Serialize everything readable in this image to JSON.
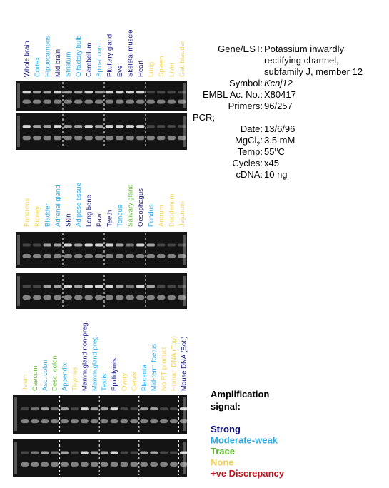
{
  "sections": [
    {
      "lanes": [
        {
          "label": "Whole brain",
          "color": "#10107a"
        },
        {
          "label": "Cortex",
          "color": "#2aa8e0"
        },
        {
          "label": "Hippocampus",
          "color": "#2aa8e0"
        },
        {
          "label": "Mid brain",
          "color": "#10107a"
        },
        {
          "label": "Striatum",
          "color": "#2aa8e0"
        },
        {
          "label": "Olfactory bulb",
          "color": "#2aa8e0"
        },
        {
          "label": "Cerebellum",
          "color": "#10107a"
        },
        {
          "label": "Spinal cord",
          "color": "#2aa8e0"
        },
        {
          "label": "Pituitary gland",
          "color": "#10107a"
        },
        {
          "label": "Eye",
          "color": "#10107a"
        },
        {
          "label": "Skeletal muscle",
          "color": "#10107a"
        },
        {
          "label": "Heart",
          "color": "#10107a"
        },
        {
          "label": "Lung",
          "color": "#f2d35a"
        },
        {
          "label": "Spleen",
          "color": "#f2d35a"
        },
        {
          "label": "Liver",
          "color": "#f2d35a"
        },
        {
          "label": "Gall bladder",
          "color": "#f2d35a"
        }
      ]
    },
    {
      "lanes": [
        {
          "label": "Pancreas",
          "color": "#f2d35a"
        },
        {
          "label": "Kidney",
          "color": "#f2d35a"
        },
        {
          "label": "Bladder",
          "color": "#2aa8e0"
        },
        {
          "label": "Adrenal gland",
          "color": "#2aa8e0"
        },
        {
          "label": "Skin",
          "color": "#10107a"
        },
        {
          "label": "Adipose tissue",
          "color": "#2aa8e0"
        },
        {
          "label": "Long bone",
          "color": "#10107a"
        },
        {
          "label": "Paw",
          "color": "#10107a"
        },
        {
          "label": "Teeth",
          "color": "#10107a"
        },
        {
          "label": "Tongue",
          "color": "#2aa8e0"
        },
        {
          "label": "Salivary gland",
          "color": "#5cb82a"
        },
        {
          "label": "Oesophagus",
          "color": "#10107a"
        },
        {
          "label": "Fundus",
          "color": "#2aa8e0"
        },
        {
          "label": "Antrum",
          "color": "#f2d35a"
        },
        {
          "label": "Duodenum",
          "color": "#f2d35a"
        },
        {
          "label": "Jejunum",
          "color": "#f2d35a"
        }
      ]
    },
    {
      "lanes": [
        {
          "label": "Ileum",
          "color": "#f2d35a"
        },
        {
          "label": "Caecum",
          "color": "#5cb82a"
        },
        {
          "label": "Asc. colon",
          "color": "#2aa8e0"
        },
        {
          "label": "Desc. colon",
          "color": "#5cb82a"
        },
        {
          "label": "Appendix",
          "color": "#2aa8e0"
        },
        {
          "label": "Thymus",
          "color": "#f2d35a"
        },
        {
          "label": "Mamm.gland non-preg.",
          "color": "#10107a"
        },
        {
          "label": "Mamm.gland preg.",
          "color": "#2aa8e0"
        },
        {
          "label": "Testis",
          "color": "#2aa8e0"
        },
        {
          "label": "Epididymis",
          "color": "#10107a"
        },
        {
          "label": "Ovary",
          "color": "#f2d35a"
        },
        {
          "label": "Cervix",
          "color": "#f2d35a"
        },
        {
          "label": "Placenta",
          "color": "#2aa8e0"
        },
        {
          "label": "Mid-term foetus",
          "color": "#2aa8e0"
        },
        {
          "label": "No RT product",
          "color": "#f2d35a"
        },
        {
          "label": "Human DNA (Top)",
          "color": "#f2d35a"
        },
        {
          "label": "Mouse DNA (Bot.)",
          "color": "#10107a"
        }
      ]
    }
  ],
  "info": {
    "gene_label": "Gene/EST:",
    "gene_lines": [
      "Potassium inwardly",
      "rectifying channel,",
      "subfamily J, member 12"
    ],
    "symbol_label": "Symbol:",
    "symbol": "Kcnj12",
    "embl_label": "EMBL Ac. No.:",
    "embl": "X80417",
    "primers_label": "Primers:",
    "primers": "96/257",
    "pcr_label": "PCR;",
    "date_label": "Date:",
    "date": "13/6/96",
    "mgcl_label": "MgCl",
    "mgcl_sub": "2",
    "mgcl_colon": ":",
    "mgcl": "3.5 mM",
    "temp_label": "Temp:",
    "temp": "55",
    "temp_sup": "o",
    "temp_unit": "C",
    "cycles_label": "Cycles:",
    "cycles": "x45",
    "cdna_label": "cDNA:",
    "cdna": "10 ng"
  },
  "legend": {
    "title_lines": [
      "Amplification",
      "signal:"
    ],
    "items": [
      {
        "label": "Strong",
        "color": "#10107a"
      },
      {
        "label": "Moderate-weak",
        "color": "#2aa8e0"
      },
      {
        "label": "Trace",
        "color": "#5cb82a"
      },
      {
        "label": "None",
        "color": "#f2d35a"
      },
      {
        "label": "+ve Discrepancy",
        "color": "#c0141e"
      }
    ]
  }
}
